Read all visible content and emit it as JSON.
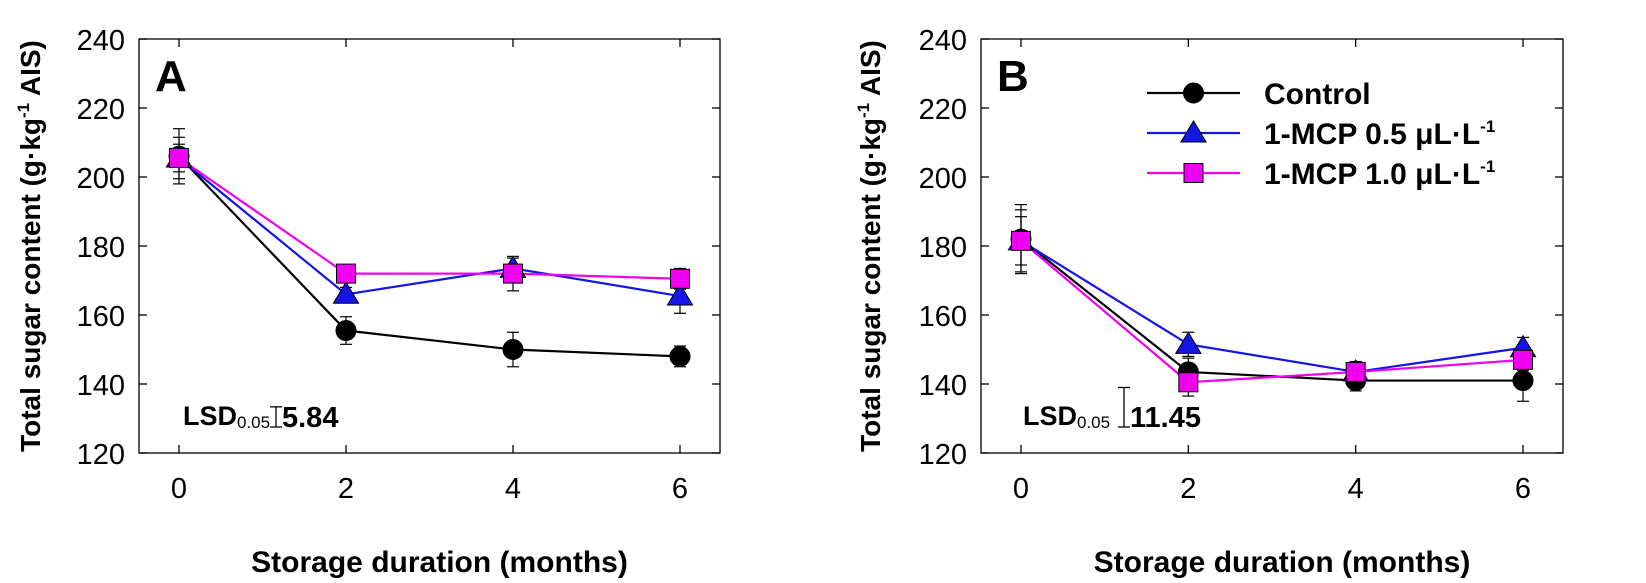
{
  "colors": {
    "control": "#000000",
    "mcp05": "#1515e8",
    "mcp10": "#f000f0"
  },
  "legend": {
    "control": "Control",
    "mcp05": {
      "base": "1-MCP 0.5 μL·L",
      "exp": "-1"
    },
    "mcp10": {
      "base": "1-MCP 1.0 μL·L",
      "exp": "-1"
    }
  },
  "chart_data": [
    {
      "type": "line",
      "panel_label": "A",
      "xlabel": "Storage duration (months)",
      "ylabel": {
        "before": "Total sugar content (g·kg",
        "exp": "-1",
        "after": " AIS)"
      },
      "x": [
        0,
        2,
        4,
        6
      ],
      "xticks": [
        "0",
        "2",
        "4",
        "6"
      ],
      "ylim": [
        120,
        240
      ],
      "yticks": [
        "120",
        "140",
        "160",
        "180",
        "200",
        "220",
        "240"
      ],
      "lsd": {
        "label": "LSD",
        "sub": "0.05",
        "value": "5.84",
        "num": 5.84
      },
      "series": [
        {
          "key": "control",
          "name": "Control",
          "marker": "circle",
          "values": [
            206,
            155.5,
            150,
            148
          ],
          "errors": [
            8,
            4,
            5,
            3
          ]
        },
        {
          "key": "mcp05",
          "name": "1-MCP 0.5 μL·L-1",
          "marker": "triangle",
          "values": [
            205.5,
            166,
            173.5,
            165.5
          ],
          "errors": [
            6,
            2,
            3,
            5
          ]
        },
        {
          "key": "mcp10",
          "name": "1-MCP 1.0 μL·L-1",
          "marker": "square",
          "values": [
            205.5,
            172,
            172,
            170.5
          ],
          "errors": [
            4,
            2.5,
            5,
            3
          ]
        }
      ]
    },
    {
      "type": "line",
      "panel_label": "B",
      "xlabel": "Storage duration (months)",
      "ylabel": {
        "before": "Total sugar content (g·kg",
        "exp": "-1",
        "after": " AIS)"
      },
      "x": [
        0,
        2,
        4,
        6
      ],
      "xticks": [
        "0",
        "2",
        "4",
        "6"
      ],
      "ylim": [
        120,
        240
      ],
      "yticks": [
        "120",
        "140",
        "160",
        "180",
        "200",
        "220",
        "240"
      ],
      "lsd": {
        "label": "LSD",
        "sub": "0.05",
        "value": "11.45",
        "num": 11.45
      },
      "series": [
        {
          "key": "control",
          "name": "Control",
          "marker": "circle",
          "values": [
            182,
            143.5,
            141,
            141
          ],
          "errors": [
            10,
            4,
            3,
            6
          ]
        },
        {
          "key": "mcp05",
          "name": "1-MCP 0.5 μL·L-1",
          "marker": "triangle",
          "values": [
            181.5,
            151.5,
            143.5,
            150.5
          ],
          "errors": [
            7,
            3.5,
            3,
            3
          ]
        },
        {
          "key": "mcp10",
          "name": "1-MCP 1.0 μL·L-1",
          "marker": "square",
          "values": [
            181.5,
            140.5,
            143.5,
            147
          ],
          "errors": [
            9,
            4,
            3,
            3
          ]
        }
      ]
    }
  ]
}
